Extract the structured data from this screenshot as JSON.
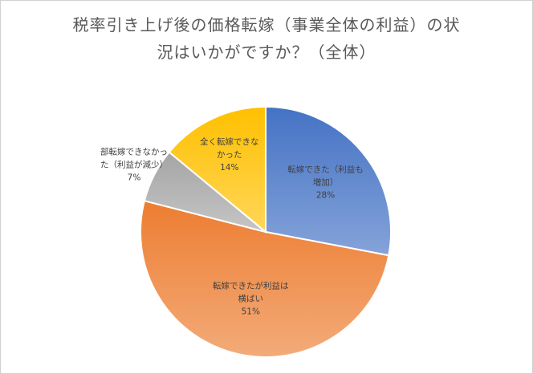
{
  "chart_data": {
    "type": "pie",
    "title_lines": [
      "税率引き上げ後の価格転嫁（事業全体の利益）の状",
      "況はいかがですか？（全体）"
    ],
    "slices": [
      {
        "label_lines": [
          "転嫁できた（利益も",
          "増加）"
        ],
        "value": 28,
        "value_label": "28%",
        "color": "#4472C4"
      },
      {
        "label_lines": [
          "転嫁できたが利益は",
          "横ばい"
        ],
        "value": 51,
        "value_label": "51%",
        "color": "#ED7D31"
      },
      {
        "label_lines": [
          "部転嫁できなかっ",
          "た（利益が減少）"
        ],
        "value": 7,
        "value_label": "7%",
        "color": "#A5A5A5"
      },
      {
        "label_lines": [
          "全く転嫁できな",
          "かった"
        ],
        "value": 14,
        "value_label": "14%",
        "color": "#FFC000"
      }
    ]
  }
}
